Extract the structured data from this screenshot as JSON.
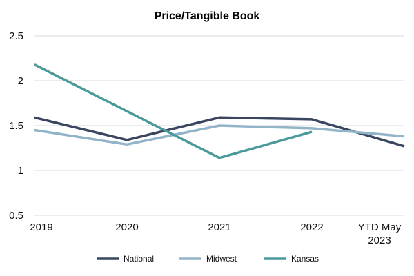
{
  "chart_data": {
    "type": "line",
    "title": "Price/Tangible Book",
    "xlabel": "",
    "ylabel": "",
    "categories": [
      "2019",
      "2020",
      "2021",
      "2022",
      "YTD May 2023"
    ],
    "category_lines": [
      [
        "2019"
      ],
      [
        "2020"
      ],
      [
        "2021"
      ],
      [
        "2022"
      ],
      [
        "YTD May",
        "2023"
      ]
    ],
    "ylim": [
      0.5,
      2.5
    ],
    "yticks": [
      "0.5",
      "1",
      "1.5",
      "2",
      "2.5"
    ],
    "grid": true,
    "legend_position": "bottom",
    "series": [
      {
        "name": "National",
        "color": "#3a4560",
        "values": [
          1.59,
          1.34,
          1.59,
          1.57,
          1.27
        ]
      },
      {
        "name": "Midwest",
        "color": "#92b4c8",
        "values": [
          1.45,
          1.29,
          1.5,
          1.47,
          1.38
        ]
      },
      {
        "name": "Kansas",
        "color": "#4a9a9c",
        "values": [
          2.18,
          null,
          1.14,
          1.43,
          null
        ]
      }
    ]
  }
}
